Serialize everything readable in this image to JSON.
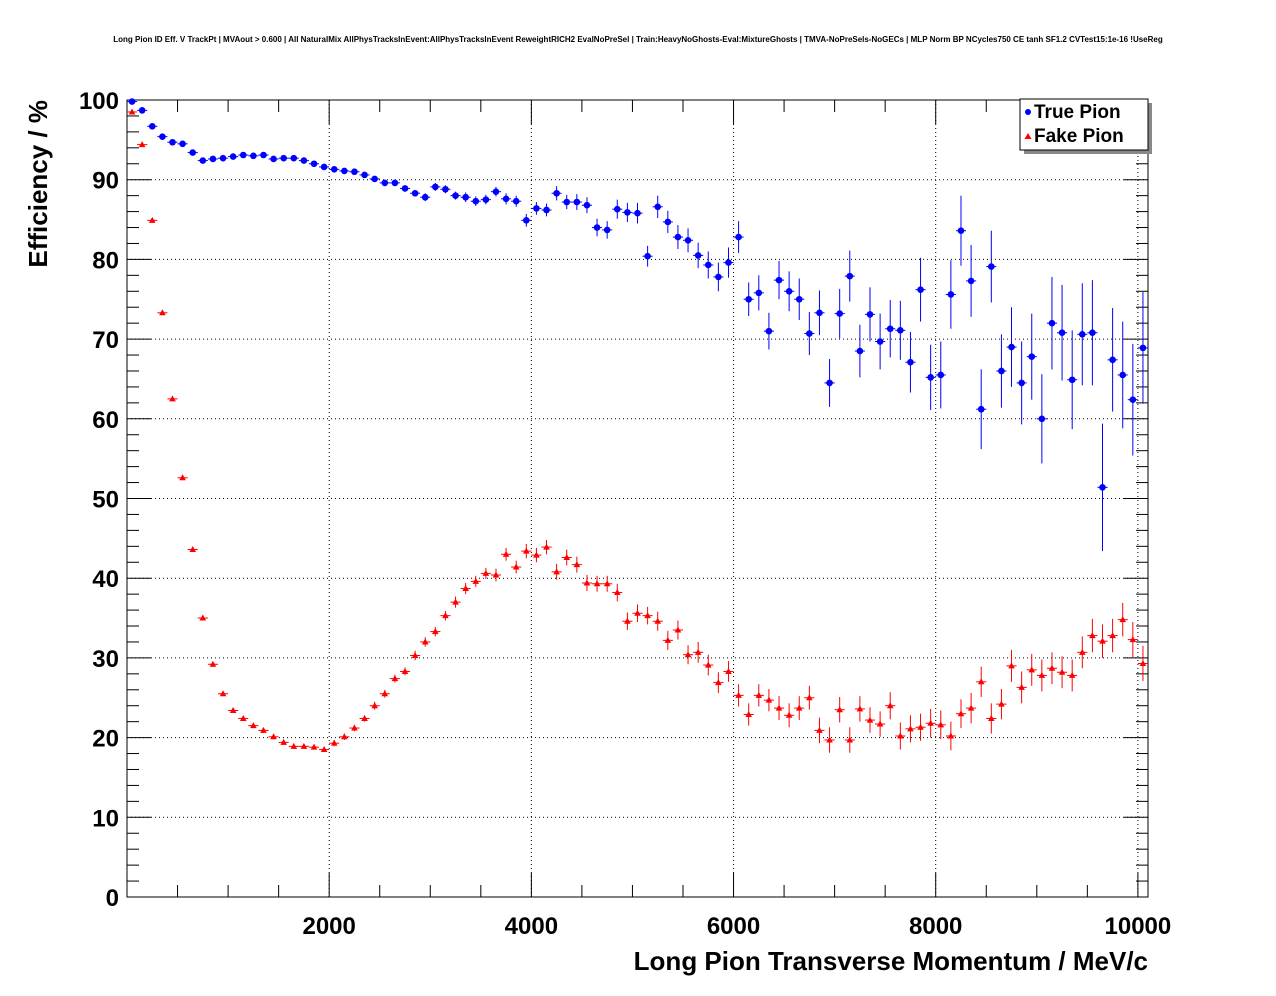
{
  "chart_data": {
    "type": "scatter",
    "title": "Long Pion ID Eff. V TrackPt | MVAout > 0.600 | All NaturalMix AllPhysTracksInEvent:AllPhysTracksInEvent ReweightRICH2 EvalNoPreSel | Train:HeavyNoGhosts-Eval:MixtureGhosts | TMVA-NoPreSels-NoGECs | MLP Norm BP NCycles750 CE tanh SF1.2 CVTest15:1e-16 !UseReg",
    "xlabel": "Long Pion Transverse Momentum / MeV/c",
    "ylabel": "Efficiency / %",
    "xlim": [
      0,
      10100
    ],
    "ylim": [
      0,
      100
    ],
    "xticks": [
      "2000",
      "4000",
      "6000",
      "8000",
      "10000"
    ],
    "yticks": [
      "0",
      "10",
      "20",
      "30",
      "40",
      "50",
      "60",
      "70",
      "80",
      "90",
      "100"
    ],
    "grid": true,
    "legend_position": "top-right",
    "series": [
      {
        "name": "True Pion",
        "color": "#0000ff",
        "marker": "circle",
        "x": [
          50,
          150,
          250,
          350,
          450,
          550,
          650,
          750,
          850,
          950,
          1050,
          1150,
          1250,
          1350,
          1450,
          1550,
          1650,
          1750,
          1850,
          1950,
          2050,
          2150,
          2250,
          2350,
          2450,
          2550,
          2650,
          2750,
          2850,
          2950,
          3050,
          3150,
          3250,
          3350,
          3450,
          3550,
          3650,
          3750,
          3850,
          3950,
          4050,
          4150,
          4250,
          4350,
          4450,
          4550,
          4650,
          4750,
          4850,
          4950,
          5050,
          5150,
          5250,
          5350,
          5450,
          5550,
          5650,
          5750,
          5850,
          5950,
          6050,
          6150,
          6250,
          6350,
          6450,
          6550,
          6650,
          6750,
          6850,
          6950,
          7050,
          7150,
          7250,
          7350,
          7450,
          7550,
          7650,
          7750,
          7850,
          7950,
          8050,
          8150,
          8250,
          8350,
          8450,
          8550,
          8650,
          8750,
          8850,
          8950,
          9050,
          9150,
          9250,
          9350,
          9450,
          9550,
          9650,
          9750,
          9850,
          9950,
          10050
        ],
        "y": [
          99.8,
          98.7,
          96.7,
          95.4,
          94.7,
          94.5,
          93.4,
          92.4,
          92.6,
          92.7,
          92.9,
          93.1,
          93.0,
          93.1,
          92.6,
          92.7,
          92.7,
          92.4,
          92.0,
          91.6,
          91.3,
          91.1,
          91.0,
          90.6,
          90.1,
          89.6,
          89.6,
          88.9,
          88.3,
          87.8,
          89.1,
          88.8,
          88.0,
          87.8,
          87.3,
          87.5,
          88.5,
          87.6,
          87.3,
          84.9,
          86.4,
          86.2,
          88.3,
          87.2,
          87.2,
          86.8,
          84.0,
          83.7,
          86.3,
          85.9,
          85.8,
          80.4,
          86.6,
          84.7,
          82.8,
          82.4,
          80.5,
          79.3,
          77.8,
          79.6,
          82.8,
          75.0,
          75.8,
          71.0,
          77.4,
          76.0,
          75.0,
          70.7,
          73.3,
          64.5,
          73.2,
          77.9,
          68.5,
          73.1,
          69.7,
          71.3,
          71.1,
          67.1,
          76.2,
          65.2,
          65.5,
          75.6,
          83.6,
          77.3,
          61.2,
          79.1,
          66.0,
          69.0,
          64.5,
          67.8,
          60.0,
          72.0,
          70.8,
          64.9,
          70.6,
          70.8,
          51.4,
          67.4,
          65.5,
          62.4,
          68.9
        ],
        "err": [
          0.2,
          0.2,
          0.2,
          0.2,
          0.2,
          0.2,
          0.2,
          0.2,
          0.2,
          0.2,
          0.2,
          0.2,
          0.2,
          0.2,
          0.2,
          0.2,
          0.3,
          0.3,
          0.3,
          0.3,
          0.3,
          0.3,
          0.3,
          0.3,
          0.3,
          0.4,
          0.4,
          0.4,
          0.4,
          0.5,
          0.5,
          0.5,
          0.5,
          0.6,
          0.6,
          0.6,
          0.6,
          0.7,
          0.7,
          0.8,
          0.8,
          0.8,
          0.9,
          0.9,
          1.0,
          1.0,
          1.1,
          1.1,
          1.2,
          1.2,
          1.3,
          1.3,
          1.4,
          1.4,
          1.5,
          1.5,
          1.6,
          1.7,
          1.8,
          1.9,
          2.0,
          2.1,
          2.2,
          2.3,
          2.4,
          2.5,
          2.6,
          2.7,
          2.8,
          3.0,
          3.1,
          3.2,
          3.3,
          3.4,
          3.5,
          3.6,
          3.7,
          3.8,
          4.0,
          4.1,
          4.2,
          4.3,
          4.4,
          4.5,
          5.0,
          4.5,
          4.6,
          5.0,
          5.2,
          5.4,
          5.6,
          5.8,
          6.0,
          6.2,
          6.4,
          6.6,
          8.0,
          6.5,
          6.7,
          7.0,
          7.0
        ]
      },
      {
        "name": "Fake Pion",
        "color": "#ff0000",
        "marker": "triangle",
        "x": [
          50,
          150,
          250,
          350,
          450,
          550,
          650,
          750,
          850,
          950,
          1050,
          1150,
          1250,
          1350,
          1450,
          1550,
          1650,
          1750,
          1850,
          1950,
          2050,
          2150,
          2250,
          2350,
          2450,
          2550,
          2650,
          2750,
          2850,
          2950,
          3050,
          3150,
          3250,
          3350,
          3450,
          3550,
          3650,
          3750,
          3850,
          3950,
          4050,
          4150,
          4250,
          4350,
          4450,
          4550,
          4650,
          4750,
          4850,
          4950,
          5050,
          5150,
          5250,
          5350,
          5450,
          5550,
          5650,
          5750,
          5850,
          5950,
          6050,
          6150,
          6250,
          6350,
          6450,
          6550,
          6650,
          6750,
          6850,
          6950,
          7050,
          7150,
          7250,
          7350,
          7450,
          7550,
          7650,
          7750,
          7850,
          7950,
          8050,
          8150,
          8250,
          8350,
          8450,
          8550,
          8650,
          8750,
          8850,
          8950,
          9050,
          9150,
          9250,
          9350,
          9450,
          9550,
          9650,
          9750,
          9850,
          9950,
          10050
        ],
        "y": [
          98.5,
          94.4,
          84.9,
          73.3,
          62.5,
          52.6,
          43.6,
          35.0,
          29.2,
          25.5,
          23.4,
          22.4,
          21.5,
          20.9,
          20.1,
          19.4,
          18.9,
          18.9,
          18.8,
          18.5,
          19.3,
          20.1,
          21.2,
          22.4,
          24.0,
          25.5,
          27.4,
          28.3,
          30.3,
          32.0,
          33.3,
          35.3,
          37.0,
          38.7,
          39.6,
          40.6,
          40.4,
          43.0,
          41.4,
          43.4,
          42.9,
          43.9,
          40.8,
          42.6,
          41.7,
          39.4,
          39.3,
          39.3,
          38.2,
          34.6,
          35.6,
          35.3,
          34.6,
          32.2,
          33.5,
          30.4,
          30.7,
          29.1,
          26.9,
          28.3,
          25.3,
          22.9,
          25.3,
          24.7,
          23.7,
          22.8,
          23.7,
          25.0,
          20.9,
          19.7,
          23.5,
          19.7,
          23.6,
          22.2,
          21.7,
          24.0,
          20.2,
          21.1,
          21.3,
          21.8,
          21.6,
          20.2,
          23.0,
          23.7,
          27.0,
          22.4,
          24.2,
          29.0,
          26.3,
          28.5,
          27.8,
          28.7,
          28.2,
          27.8,
          30.7,
          32.8,
          32.1,
          32.8,
          34.8,
          32.3,
          29.3
        ],
        "err": [
          0.3,
          0.3,
          0.3,
          0.3,
          0.3,
          0.3,
          0.3,
          0.3,
          0.3,
          0.3,
          0.3,
          0.3,
          0.3,
          0.3,
          0.3,
          0.3,
          0.3,
          0.3,
          0.3,
          0.3,
          0.4,
          0.4,
          0.4,
          0.4,
          0.5,
          0.5,
          0.5,
          0.5,
          0.6,
          0.6,
          0.6,
          0.6,
          0.7,
          0.7,
          0.7,
          0.7,
          0.8,
          0.8,
          0.8,
          0.9,
          0.9,
          0.9,
          1.0,
          1.0,
          1.0,
          1.0,
          1.0,
          1.0,
          1.1,
          1.1,
          1.1,
          1.1,
          1.2,
          1.2,
          1.2,
          1.2,
          1.3,
          1.3,
          1.3,
          1.3,
          1.4,
          1.4,
          1.4,
          1.4,
          1.5,
          1.5,
          1.5,
          1.5,
          1.6,
          1.6,
          1.6,
          1.6,
          1.6,
          1.6,
          1.6,
          1.7,
          1.7,
          1.7,
          1.7,
          1.8,
          1.8,
          1.8,
          1.8,
          1.9,
          1.9,
          1.9,
          1.9,
          2.0,
          2.0,
          2.0,
          2.0,
          2.0,
          2.0,
          2.0,
          2.0,
          2.1,
          2.1,
          2.1,
          2.1,
          2.2,
          2.2
        ]
      }
    ]
  }
}
